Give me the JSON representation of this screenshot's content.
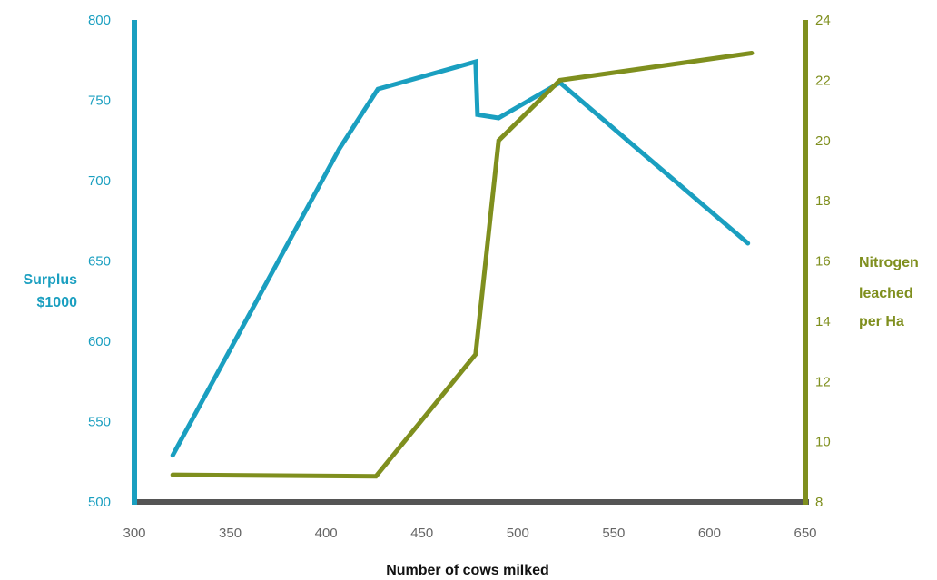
{
  "chart_data": {
    "type": "line",
    "xlabel": "Number of cows milked",
    "ylabel_left": [
      "Surplus",
      "$1000"
    ],
    "ylabel_right": [
      "Nitrogen",
      "leached",
      "per Ha"
    ],
    "xlim": [
      300,
      650
    ],
    "ylim_left": [
      500,
      800
    ],
    "ylim_right": [
      8,
      24
    ],
    "xticks": [
      "300",
      "350",
      "400",
      "450",
      "500",
      "550",
      "600",
      "650"
    ],
    "yticks_left": [
      "500",
      "550",
      "600",
      "650",
      "700",
      "750",
      "800"
    ],
    "yticks_right": [
      "8",
      "10",
      "12",
      "14",
      "16",
      "18",
      "20",
      "22",
      "24"
    ],
    "grid": false,
    "series": [
      {
        "axis": "left",
        "color": "#1a9fc0",
        "points": [
          [
            320,
            529
          ],
          [
            407,
            720
          ],
          [
            427,
            757
          ],
          [
            478,
            774
          ],
          [
            479,
            741
          ],
          [
            490,
            739
          ],
          [
            522,
            761
          ],
          [
            620,
            661
          ]
        ]
      },
      {
        "axis": "right",
        "color": "#7f8f1e",
        "points": [
          [
            320,
            8.9
          ],
          [
            426,
            8.85
          ],
          [
            478,
            12.9
          ],
          [
            490,
            20.0
          ],
          [
            522,
            22.0
          ],
          [
            622,
            22.9
          ]
        ]
      }
    ],
    "colors": {
      "left_axis": "#1a9fc0",
      "right_axis": "#7f8f1e",
      "x_axis": "#555555",
      "tick_text": "#666666"
    }
  }
}
